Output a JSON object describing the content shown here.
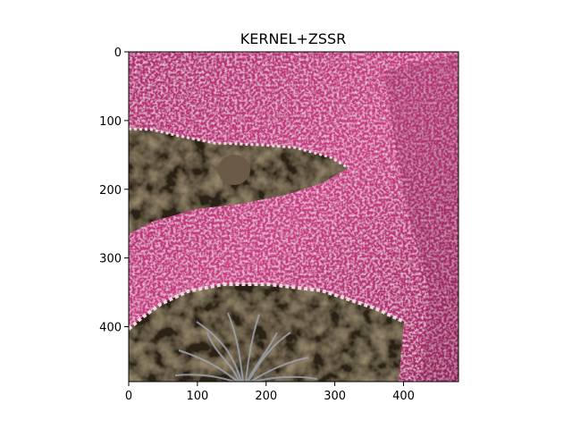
{
  "figure": {
    "title": "KERNEL+ZSSR"
  },
  "axes": {
    "x_ticks": [
      0,
      100,
      200,
      300,
      400
    ],
    "y_ticks": [
      0,
      100,
      200,
      300,
      400
    ],
    "x_range": [
      0,
      480
    ],
    "y_range": [
      0,
      480
    ],
    "y_inverted": true
  },
  "image": {
    "subject": "close-up of a pink sea star arm with textured spiny skin over dark rocky seabed with anemone tentacles",
    "colors": {
      "star_pink": "#c2357e",
      "star_light": "#e59bc6",
      "star_dark": "#7a1d4b",
      "rock_dark": "#2c2216",
      "rock_brown": "#5a4630",
      "edge_light": "#f3d7e2",
      "tentacle": "#9ea3b0"
    }
  }
}
